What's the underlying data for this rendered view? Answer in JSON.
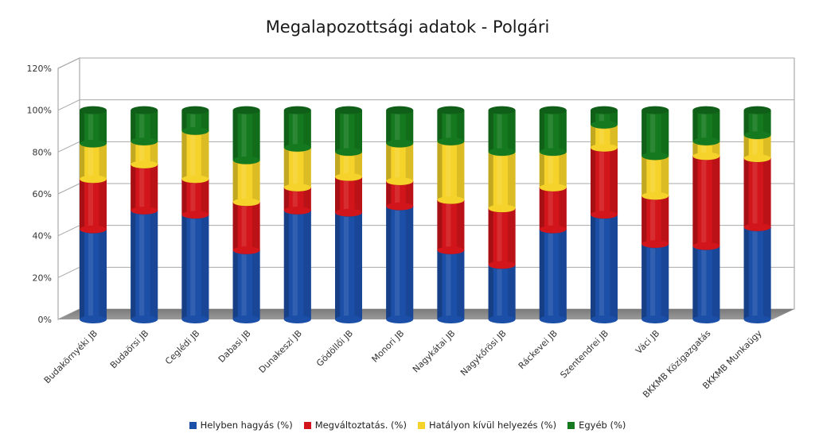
{
  "chart_data": {
    "type": "bar",
    "stacked": true,
    "title": "Megalapozottsági adatok - Polgári",
    "xlabel": "",
    "ylabel": "",
    "ylim": [
      0,
      120
    ],
    "yticks": [
      "0%",
      "20%",
      "40%",
      "60%",
      "80%",
      "100%",
      "120%"
    ],
    "grid": true,
    "legend_position": "bottom",
    "categories": [
      "Budakörnyéki JB",
      "Budaörsi JB",
      "Ceglédi JB",
      "Dabasi JB",
      "Dunakeszi JB",
      "Gödöllői JB",
      "Monori JB",
      "Nagykátai JB",
      "Nagykőrösi JB",
      "Ráckevei JB",
      "Szentendrei JB",
      "Váci JB",
      "BKKMB Közigazgatás",
      "BKKMB Munkaügy"
    ],
    "series": [
      {
        "name": "Helyben hagyás (%)",
        "color": "#1c4fa8",
        "values": [
          43,
          52,
          50,
          33,
          52,
          51,
          54,
          33,
          26,
          43,
          50,
          36,
          35,
          44
        ]
      },
      {
        "name": "Megváltoztatás. (%)",
        "color": "#d2151a",
        "values": [
          24,
          22,
          17,
          23,
          11,
          17,
          12,
          24,
          27,
          20,
          32,
          23,
          43,
          33
        ]
      },
      {
        "name": "Hatályon kívül helyezés (%)",
        "color": "#f5d32a",
        "values": [
          17,
          11,
          23,
          20,
          19,
          12,
          18,
          28,
          27,
          17,
          11,
          19,
          7,
          11
        ]
      },
      {
        "name": "Egyéb (%)",
        "color": "#157a1f",
        "values": [
          16,
          15,
          10,
          24,
          18,
          20,
          16,
          15,
          20,
          20,
          7,
          22,
          15,
          12
        ]
      }
    ]
  }
}
